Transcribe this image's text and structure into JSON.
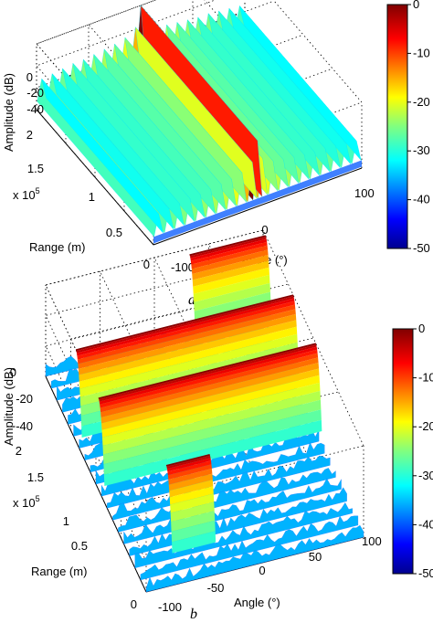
{
  "chart_data": [
    {
      "type": "surface",
      "caption": "a",
      "zlabel": "Amplitude (dB)",
      "ylabel": "Range (m)",
      "y_exponent": "x 10",
      "y_exponent_power": "5",
      "xlabel": "Angle (°)",
      "x_ticks": [
        "-100",
        "0",
        "100"
      ],
      "y_ticks": [
        "0",
        "0.5",
        "1",
        "1.5",
        "2"
      ],
      "z_ticks": [
        "0",
        "-20",
        "-40"
      ],
      "colorbar_ticks": [
        "0",
        "-10",
        "-20",
        "-30",
        "-40",
        "-50"
      ],
      "clim": [
        -50,
        0
      ],
      "xlim": [
        -100,
        100
      ],
      "ylim": [
        0,
        200000
      ],
      "zlim": [
        -50,
        0
      ],
      "colormap": "jet",
      "grid": true,
      "peaks": [
        {
          "angle": 0,
          "range_m": null,
          "amplitude_db": 0,
          "description_note": null
        }
      ],
      "ridge_angles": [
        -95,
        -85,
        -75,
        -65,
        -55,
        -45,
        -35,
        -25,
        -15,
        -5,
        0,
        5,
        15,
        25,
        35,
        45,
        55,
        65,
        75,
        85,
        95
      ],
      "ridge_levels_db": [
        -28,
        -27,
        -26,
        -25,
        -25,
        -24,
        -23,
        -22,
        -20,
        -15,
        0,
        -15,
        -20,
        -22,
        -23,
        -24,
        -25,
        -25,
        -26,
        -27,
        -28
      ]
    },
    {
      "type": "surface",
      "caption": "b",
      "zlabel": "Amplitude (dB)",
      "ylabel": "Range (m)",
      "y_exponent": "x 10",
      "y_exponent_power": "5",
      "xlabel": "Angle (°)",
      "x_ticks": [
        "-100",
        "-50",
        "0",
        "50",
        "100"
      ],
      "y_ticks": [
        "0",
        "0.5",
        "1",
        "1.5",
        "2"
      ],
      "z_ticks": [
        "0",
        "-20",
        "-40"
      ],
      "colorbar_ticks": [
        "0",
        "-10",
        "-20",
        "-30",
        "-40",
        "-50"
      ],
      "clim": [
        -50,
        0
      ],
      "xlim": [
        -100,
        100
      ],
      "ylim": [
        0,
        200000
      ],
      "zlim": [
        -50,
        0
      ],
      "colormap": "jet",
      "grid": true,
      "bands": [
        {
          "range_m": 25000,
          "angle_from": -70,
          "angle_to": -30,
          "amplitude_db": 0
        },
        {
          "range_m": 95000,
          "angle_from": -100,
          "angle_to": 100,
          "amplitude_db": 0
        },
        {
          "range_m": 140000,
          "angle_from": -100,
          "angle_to": 100,
          "amplitude_db": 0
        },
        {
          "range_m": 195000,
          "angle_from": 30,
          "angle_to": 100,
          "amplitude_db": 0
        }
      ]
    }
  ],
  "colors": {
    "jet_stops": [
      "#00008f",
      "#0000ff",
      "#0080ff",
      "#00ffff",
      "#80ff80",
      "#ffff00",
      "#ff8000",
      "#ff0000",
      "#800000"
    ],
    "grid": "#000000"
  }
}
